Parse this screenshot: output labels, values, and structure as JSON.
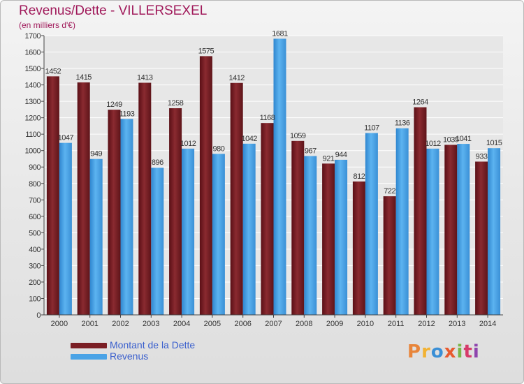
{
  "header": {
    "title": "Revenus/Dette - VILLERSEXEL",
    "subtitle": "(en milliers d'€)"
  },
  "legend": [
    {
      "label": "Montant de la Dette",
      "color": "#7a1e24"
    },
    {
      "label": "Revenus",
      "color": "#4aa3e6"
    }
  ],
  "brand": {
    "text": "Proxiti",
    "colors": [
      "#e8853a",
      "#f2b233",
      "#3a8fd6",
      "#e85a2e",
      "#7ab648",
      "#d63a6a",
      "#8e44ad"
    ]
  },
  "chart_data": {
    "type": "bar",
    "categories": [
      "2000",
      "2001",
      "2002",
      "2003",
      "2004",
      "2005",
      "2006",
      "2007",
      "2008",
      "2009",
      "2010",
      "2011",
      "2012",
      "2013",
      "2014"
    ],
    "series": [
      {
        "name": "Montant de la Dette",
        "color": "#7a1e24",
        "values": [
          1452,
          1415,
          1249,
          1413,
          1258,
          1575,
          1412,
          1168,
          1059,
          921,
          812,
          722,
          1264,
          1035,
          933
        ]
      },
      {
        "name": "Revenus",
        "color": "#4aa3e6",
        "values": [
          1047,
          949,
          1193,
          896,
          1012,
          980,
          1042,
          1681,
          967,
          944,
          1107,
          1136,
          1012,
          1041,
          1015
        ]
      }
    ],
    "value_labels": [
      [
        "1452",
        "1415",
        "1249",
        "1413",
        "1258",
        "1575",
        "1412",
        "1168",
        "1059",
        "921",
        "812",
        "722",
        "1264",
        "1035",
        "933"
      ],
      [
        "1047",
        "949",
        "1193",
        "896",
        "1012",
        "980",
        "1042",
        "1681",
        "967",
        "944",
        "1107",
        "1136",
        "1012",
        "1041",
        "1015"
      ]
    ],
    "ylim": [
      0,
      1700
    ],
    "yticks": [
      0,
      100,
      200,
      300,
      400,
      500,
      600,
      700,
      800,
      900,
      1000,
      1100,
      1200,
      1300,
      1400,
      1500,
      1600,
      1700
    ],
    "grid": true,
    "legend_position": "bottom-left"
  }
}
